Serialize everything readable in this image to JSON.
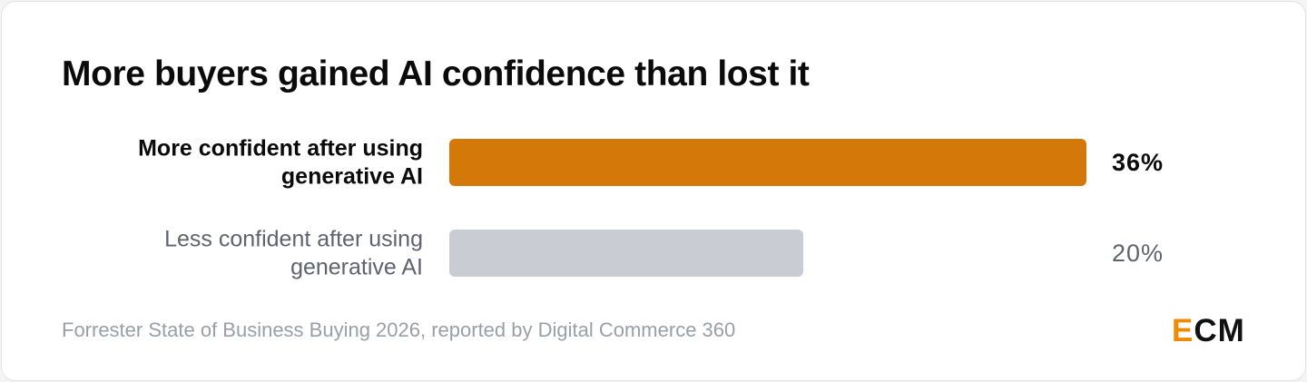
{
  "title": "More buyers gained AI confidence than lost it",
  "source": "Forrester State of Business Buying 2026, reported by Digital Commerce 360",
  "logo": {
    "accent": "E",
    "rest": "CM",
    "accent_color": "#f08a00"
  },
  "chart_data": {
    "type": "bar",
    "orientation": "horizontal",
    "title": "More buyers gained AI confidence than lost it",
    "categories": [
      [
        "More confident after using",
        "generative AI"
      ],
      [
        "Less confident after using",
        "generative AI"
      ]
    ],
    "values": [
      36,
      20
    ],
    "value_labels": [
      "36%",
      "20%"
    ],
    "unit": "%",
    "xlim": [
      0,
      36
    ],
    "grid": false,
    "legend": "none",
    "colors": [
      "#d4780a",
      "#c9ccd3"
    ],
    "highlighted": [
      true,
      false
    ]
  }
}
